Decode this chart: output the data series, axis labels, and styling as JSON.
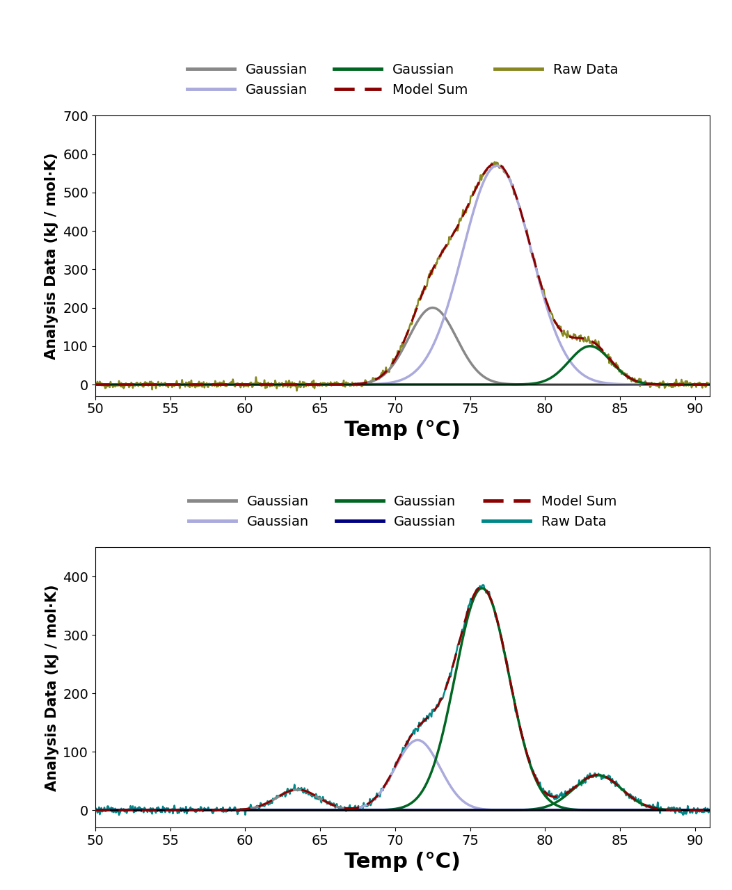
{
  "top_panel": {
    "gaussians": [
      {
        "amp": 200,
        "mu": 72.5,
        "sigma": 1.6,
        "color": "#888888",
        "lw": 2.5
      },
      {
        "amp": 570,
        "mu": 76.8,
        "sigma": 2.3,
        "color": "#aaaadd",
        "lw": 2.5
      },
      {
        "amp": 100,
        "mu": 83.0,
        "sigma": 1.4,
        "color": "#006622",
        "lw": 2.5
      }
    ],
    "raw_color": "#888822",
    "model_sum_color": "#8B0000",
    "ylim": [
      -30,
      700
    ],
    "yticks": [
      0,
      100,
      200,
      300,
      400,
      500,
      600,
      700
    ],
    "legend_items": [
      {
        "label": "Gaussian",
        "color": "#888888",
        "ls": "-"
      },
      {
        "label": "Gaussian",
        "color": "#aaaadd",
        "ls": "-"
      },
      {
        "label": "Gaussian",
        "color": "#006622",
        "ls": "-"
      },
      {
        "label": "Model Sum",
        "color": "#8B0000",
        "ls": "--"
      },
      {
        "label": "Raw Data",
        "color": "#888822",
        "ls": "-"
      }
    ]
  },
  "bottom_panel": {
    "gaussians": [
      {
        "amp": 35,
        "mu": 63.5,
        "sigma": 1.4,
        "color": "#888888",
        "lw": 2.5
      },
      {
        "amp": 120,
        "mu": 71.5,
        "sigma": 1.5,
        "color": "#aaaadd",
        "lw": 2.5
      },
      {
        "amp": 380,
        "mu": 75.8,
        "sigma": 1.8,
        "color": "#006622",
        "lw": 2.5
      },
      {
        "amp": 0.5,
        "mu": 75.0,
        "sigma": 15.0,
        "color": "#000080",
        "lw": 2.5
      }
    ],
    "raw_color": "#008888",
    "model_sum_color": "#8B0000",
    "ylim": [
      -30,
      450
    ],
    "yticks": [
      0,
      100,
      200,
      300,
      400
    ],
    "legend_items": [
      {
        "label": "Gaussian",
        "color": "#888888",
        "ls": "-"
      },
      {
        "label": "Gaussian",
        "color": "#aaaadd",
        "ls": "-"
      },
      {
        "label": "Gaussian",
        "color": "#006622",
        "ls": "-"
      },
      {
        "label": "Gaussian",
        "color": "#000080",
        "ls": "-"
      },
      {
        "label": "Model Sum",
        "color": "#8B0000",
        "ls": "--"
      },
      {
        "label": "Raw Data",
        "color": "#008888",
        "ls": "-"
      }
    ]
  },
  "xlim": [
    50,
    91
  ],
  "xticks": [
    50,
    55,
    60,
    65,
    70,
    75,
    80,
    85,
    90
  ],
  "xlabel": "Temp (°C)",
  "ylabel": "Analysis Data (kJ / mol·K)",
  "xlabel_fontsize": 22,
  "ylabel_fontsize": 15,
  "tick_fontsize": 14,
  "legend_fontsize": 14
}
